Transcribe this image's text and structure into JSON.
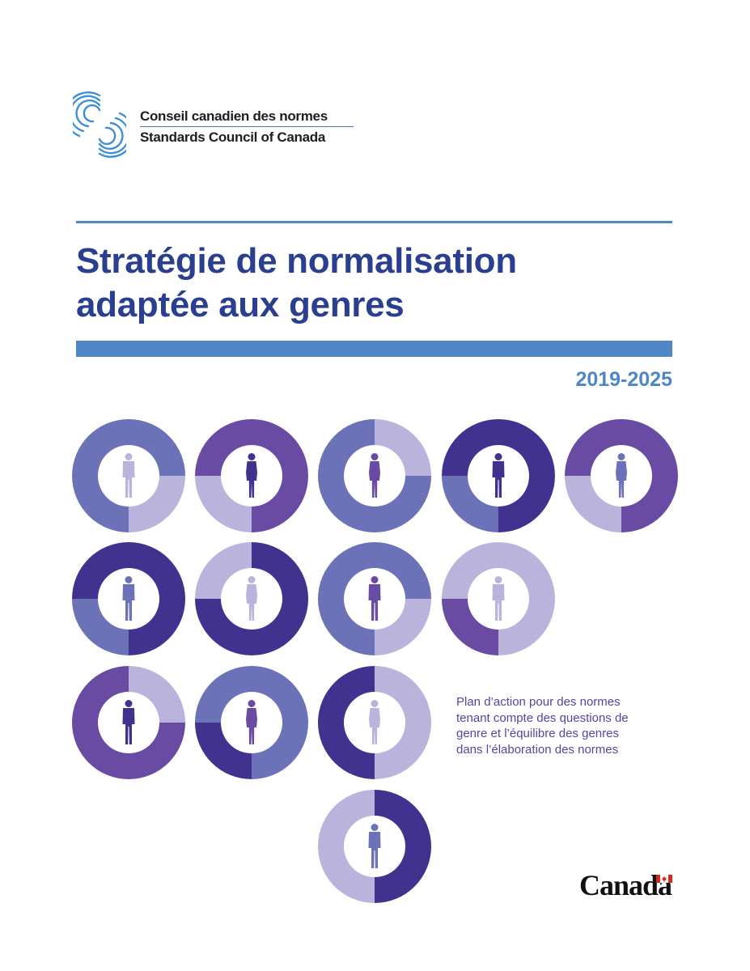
{
  "header": {
    "org_name_fr": "Conseil canadien des normes",
    "org_name_en": "Standards Council of Canada",
    "logo_icon": "scc-spiral-logo-icon"
  },
  "title": {
    "line1": "Stratégie de normalisation",
    "line2": "adaptée aux genres"
  },
  "years": "2019-2025",
  "caption": {
    "line1": "Plan d’action pour des normes",
    "line2": "tenant compte des questions de",
    "line3": "genre et l’équilibre des genres",
    "line4": "dans l’élaboration des normes"
  },
  "footer": {
    "wordmark": "Canada",
    "flag_icon": "canada-flag-icon"
  },
  "colors": {
    "title": "#2a3f8f",
    "accent_blue": "#4e86c6",
    "caption": "#5346a5",
    "periwinkle": "#6c72b8",
    "lavender": "#bab3dc",
    "violet": "#6a4ba3",
    "indigo": "#413290"
  },
  "donuts": [
    {
      "segments": [
        {
          "from": 0,
          "to": 90,
          "color": "periwinkle"
        },
        {
          "from": 90,
          "to": 180,
          "color": "lavender"
        },
        {
          "from": 180,
          "to": 360,
          "color": "periwinkle"
        }
      ],
      "figure": "man",
      "figure_color": "lavender"
    },
    {
      "segments": [
        {
          "from": 0,
          "to": 180,
          "color": "violet"
        },
        {
          "from": 180,
          "to": 270,
          "color": "lavender"
        },
        {
          "from": 270,
          "to": 360,
          "color": "violet"
        }
      ],
      "figure": "woman",
      "figure_color": "indigo"
    },
    {
      "segments": [
        {
          "from": 0,
          "to": 90,
          "color": "lavender"
        },
        {
          "from": 90,
          "to": 360,
          "color": "periwinkle"
        }
      ],
      "figure": "woman",
      "figure_color": "violet"
    },
    {
      "segments": [
        {
          "from": 0,
          "to": 180,
          "color": "indigo"
        },
        {
          "from": 180,
          "to": 270,
          "color": "periwinkle"
        },
        {
          "from": 270,
          "to": 360,
          "color": "indigo"
        }
      ],
      "figure": "man",
      "figure_color": "indigo"
    },
    {
      "segments": [
        {
          "from": 0,
          "to": 180,
          "color": "violet"
        },
        {
          "from": 180,
          "to": 270,
          "color": "lavender"
        },
        {
          "from": 270,
          "to": 360,
          "color": "violet"
        }
      ],
      "figure": "woman",
      "figure_color": "periwinkle"
    },
    {
      "segments": [
        {
          "from": 0,
          "to": 180,
          "color": "indigo"
        },
        {
          "from": 180,
          "to": 270,
          "color": "periwinkle"
        },
        {
          "from": 270,
          "to": 360,
          "color": "indigo"
        }
      ],
      "figure": "man",
      "figure_color": "periwinkle"
    },
    {
      "segments": [
        {
          "from": 0,
          "to": 270,
          "color": "indigo"
        },
        {
          "from": 270,
          "to": 360,
          "color": "lavender"
        }
      ],
      "figure": "woman",
      "figure_color": "lavender"
    },
    {
      "segments": [
        {
          "from": 0,
          "to": 90,
          "color": "periwinkle"
        },
        {
          "from": 90,
          "to": 180,
          "color": "lavender"
        },
        {
          "from": 180,
          "to": 360,
          "color": "periwinkle"
        }
      ],
      "figure": "man",
      "figure_color": "violet"
    },
    {
      "segments": [
        {
          "from": 0,
          "to": 180,
          "color": "lavender"
        },
        {
          "from": 180,
          "to": 270,
          "color": "violet"
        },
        {
          "from": 270,
          "to": 360,
          "color": "lavender"
        }
      ],
      "figure": "man",
      "figure_color": "lavender"
    },
    {
      "segments": [
        {
          "from": 0,
          "to": 90,
          "color": "lavender"
        },
        {
          "from": 90,
          "to": 360,
          "color": "violet"
        }
      ],
      "figure": "man",
      "figure_color": "indigo"
    },
    {
      "segments": [
        {
          "from": 0,
          "to": 180,
          "color": "periwinkle"
        },
        {
          "from": 180,
          "to": 270,
          "color": "indigo"
        },
        {
          "from": 270,
          "to": 360,
          "color": "periwinkle"
        }
      ],
      "figure": "woman",
      "figure_color": "violet"
    },
    {
      "segments": [
        {
          "from": 0,
          "to": 180,
          "color": "lavender"
        },
        {
          "from": 180,
          "to": 360,
          "color": "indigo"
        }
      ],
      "figure": "woman",
      "figure_color": "lavender"
    },
    {
      "segments": [
        {
          "from": 0,
          "to": 180,
          "color": "indigo"
        },
        {
          "from": 180,
          "to": 360,
          "color": "lavender"
        }
      ],
      "figure": "man",
      "figure_color": "periwinkle"
    }
  ]
}
